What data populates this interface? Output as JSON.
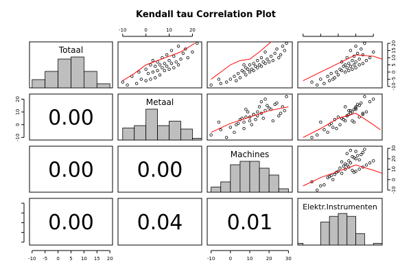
{
  "chart_data": {
    "type": "scatter",
    "title": "Kendall tau Correlation Plot",
    "variables": [
      "Totaal",
      "Metaal",
      "Machines",
      "Elektr.Instrumenten"
    ],
    "ticks": {
      "Totaal": [
        -10,
        -5,
        0,
        5,
        10,
        15,
        20
      ],
      "Metaal": [
        -10,
        0,
        10,
        20
      ],
      "Machines": [
        -10,
        0,
        10,
        20,
        30
      ],
      "Elektr.Instrumenten": [
        -20,
        -10,
        0,
        10,
        20
      ]
    },
    "ranges": {
      "Totaal": [
        -11,
        21
      ],
      "Metaal": [
        -12,
        24
      ],
      "Machines": [
        -12,
        32
      ],
      "Elektr.Instrumenten": [
        -23,
        25
      ]
    },
    "histograms": {
      "Totaal": {
        "bins": [
          -10,
          -5,
          0,
          5,
          10,
          15,
          20
        ],
        "counts": [
          2,
          4,
          7,
          7.5,
          4,
          1,
          0.6
        ]
      },
      "Metaal": {
        "bins": [
          -10,
          -5,
          0,
          5,
          10,
          15,
          20,
          24
        ],
        "counts": [
          3.5,
          4.2,
          9,
          4.2,
          5.5,
          3.2,
          0.5
        ]
      },
      "Machines": {
        "bins": [
          -10,
          -5,
          0,
          5,
          10,
          15,
          20,
          25,
          30
        ],
        "counts": [
          1.5,
          3,
          8,
          9,
          9,
          7,
          5,
          1
        ]
      },
      "Elektr.Instrumenten": {
        "bins": [
          -23,
          -20,
          -15,
          -10,
          -5,
          0,
          5,
          10,
          15,
          20,
          25
        ],
        "counts": [
          0.3,
          0,
          0,
          4,
          5,
          5.5,
          5,
          2,
          0,
          0.3
        ]
      }
    },
    "correlations": [
      {
        "row": "Metaal",
        "col": "Totaal",
        "value": "0.00"
      },
      {
        "row": "Machines",
        "col": "Totaal",
        "value": "0.00"
      },
      {
        "row": "Machines",
        "col": "Metaal",
        "value": "0.00"
      },
      {
        "row": "Elektr.Instrumenten",
        "col": "Totaal",
        "value": "0.00"
      },
      {
        "row": "Elektr.Instrumenten",
        "col": "Metaal",
        "value": "0.04"
      },
      {
        "row": "Elektr.Instrumenten",
        "col": "Machines",
        "value": "0.01"
      }
    ],
    "series": [
      {
        "Totaal": -9,
        "Metaal": -8,
        "Machines": -10,
        "Elektr.Instrumenten": -12
      },
      {
        "Totaal": -8,
        "Metaal": -4,
        "Machines": -5,
        "Elektr.Instrumenten": -8
      },
      {
        "Totaal": -7,
        "Metaal": -10,
        "Machines": -2,
        "Elektr.Instrumenten": -15
      },
      {
        "Totaal": -6,
        "Metaal": 0,
        "Machines": 3,
        "Elektr.Instrumenten": -5
      },
      {
        "Totaal": -5,
        "Metaal": -2,
        "Machines": 0,
        "Elektr.Instrumenten": -3
      },
      {
        "Totaal": -5,
        "Metaal": 2,
        "Machines": -6,
        "Elektr.Instrumenten": -10
      },
      {
        "Totaal": -4,
        "Metaal": 4,
        "Machines": 5,
        "Elektr.Instrumenten": -2
      },
      {
        "Totaal": -3,
        "Metaal": -6,
        "Machines": 2,
        "Elektr.Instrumenten": -6
      },
      {
        "Totaal": -2,
        "Metaal": 6,
        "Machines": 8,
        "Elektr.Instrumenten": 0
      },
      {
        "Totaal": -1,
        "Metaal": 1,
        "Machines": 4,
        "Elektr.Instrumenten": -4
      },
      {
        "Totaal": 0,
        "Metaal": 3,
        "Machines": 10,
        "Elektr.Instrumenten": 4
      },
      {
        "Totaal": 0,
        "Metaal": -3,
        "Machines": 7,
        "Elektr.Instrumenten": -1
      },
      {
        "Totaal": 1,
        "Metaal": 8,
        "Machines": 12,
        "Elektr.Instrumenten": 6
      },
      {
        "Totaal": 1,
        "Metaal": 5,
        "Machines": 6,
        "Elektr.Instrumenten": 2
      },
      {
        "Totaal": 2,
        "Metaal": 10,
        "Machines": 9,
        "Elektr.Instrumenten": 8
      },
      {
        "Totaal": 2,
        "Metaal": 0,
        "Machines": 11,
        "Elektr.Instrumenten": 1
      },
      {
        "Totaal": 3,
        "Metaal": 7,
        "Machines": 14,
        "Elektr.Instrumenten": 5
      },
      {
        "Totaal": 3,
        "Metaal": 12,
        "Machines": 8,
        "Elektr.Instrumenten": 10
      },
      {
        "Totaal": 4,
        "Metaal": 4,
        "Machines": 13,
        "Elektr.Instrumenten": 3
      },
      {
        "Totaal": 4,
        "Metaal": 9,
        "Machines": 16,
        "Elektr.Instrumenten": 7
      },
      {
        "Totaal": 5,
        "Metaal": 6,
        "Machines": 10,
        "Elektr.Instrumenten": 12
      },
      {
        "Totaal": 5,
        "Metaal": 14,
        "Machines": 15,
        "Elektr.Instrumenten": 4
      },
      {
        "Totaal": 5,
        "Metaal": 2,
        "Machines": 7,
        "Elektr.Instrumenten": 9
      },
      {
        "Totaal": 6,
        "Metaal": 11,
        "Machines": 18,
        "Elektr.Instrumenten": 6
      },
      {
        "Totaal": 6,
        "Metaal": 8,
        "Machines": 12,
        "Elektr.Instrumenten": 14
      },
      {
        "Totaal": 7,
        "Metaal": 5,
        "Machines": 17,
        "Elektr.Instrumenten": 2
      },
      {
        "Totaal": 7,
        "Metaal": 13,
        "Machines": 20,
        "Elektr.Instrumenten": 10
      },
      {
        "Totaal": 8,
        "Metaal": 10,
        "Machines": 14,
        "Elektr.Instrumenten": 16
      },
      {
        "Totaal": 8,
        "Metaal": 3,
        "Machines": 22,
        "Elektr.Instrumenten": 8
      },
      {
        "Totaal": 9,
        "Metaal": 15,
        "Machines": 19,
        "Elektr.Instrumenten": 12
      },
      {
        "Totaal": 10,
        "Metaal": 7,
        "Machines": 25,
        "Elektr.Instrumenten": 5
      },
      {
        "Totaal": 10,
        "Metaal": 18,
        "Machines": 16,
        "Elektr.Instrumenten": 18
      },
      {
        "Totaal": 11,
        "Metaal": 12,
        "Machines": 21,
        "Elektr.Instrumenten": 9
      },
      {
        "Totaal": 12,
        "Metaal": 9,
        "Machines": 26,
        "Elektr.Instrumenten": 14
      },
      {
        "Totaal": 13,
        "Metaal": 16,
        "Machines": 23,
        "Elektr.Instrumenten": 11
      },
      {
        "Totaal": 14,
        "Metaal": 20,
        "Machines": 18,
        "Elektr.Instrumenten": 20
      },
      {
        "Totaal": 15,
        "Metaal": 11,
        "Machines": 28,
        "Elektr.Instrumenten": 7
      },
      {
        "Totaal": 16,
        "Metaal": 17,
        "Machines": 24,
        "Elektr.Instrumenten": 13
      },
      {
        "Totaal": 18,
        "Metaal": 14,
        "Machines": 27,
        "Elektr.Instrumenten": 10
      },
      {
        "Totaal": 20,
        "Metaal": 22,
        "Machines": 29,
        "Elektr.Instrumenten": 15
      }
    ],
    "smoothers": {
      "Totaal|Metaal": [
        [
          -10,
          -6
        ],
        [
          -5,
          -1
        ],
        [
          0,
          5
        ],
        [
          5,
          8
        ],
        [
          10,
          11
        ],
        [
          15,
          14
        ],
        [
          21,
          20
        ]
      ],
      "Totaal|Machines": [
        [
          -10,
          -5
        ],
        [
          -5,
          0
        ],
        [
          0,
          5
        ],
        [
          5,
          8
        ],
        [
          10,
          9
        ],
        [
          15,
          14
        ],
        [
          21,
          21
        ]
      ],
      "Totaal|Elektr.Instrumenten": [
        [
          -20,
          -6
        ],
        [
          -10,
          0
        ],
        [
          0,
          6
        ],
        [
          10,
          12
        ],
        [
          20,
          11
        ],
        [
          25,
          9
        ]
      ],
      "Metaal|Machines": [
        [
          -10,
          -6
        ],
        [
          0,
          1
        ],
        [
          10,
          6
        ],
        [
          20,
          11
        ],
        [
          30,
          14
        ]
      ],
      "Metaal|Elektr.Instrumenten": [
        [
          -20,
          -10
        ],
        [
          -10,
          -3
        ],
        [
          0,
          5
        ],
        [
          10,
          9
        ],
        [
          20,
          0
        ],
        [
          24,
          -4
        ]
      ],
      "Machines|Elektr.Instrumenten": [
        [
          -20,
          -6
        ],
        [
          -10,
          2
        ],
        [
          0,
          8
        ],
        [
          10,
          14
        ],
        [
          20,
          9
        ],
        [
          25,
          6
        ]
      ]
    },
    "point_color": "#000000",
    "smoother_color": "#ff0000",
    "hist_fill": "#bebebe"
  }
}
